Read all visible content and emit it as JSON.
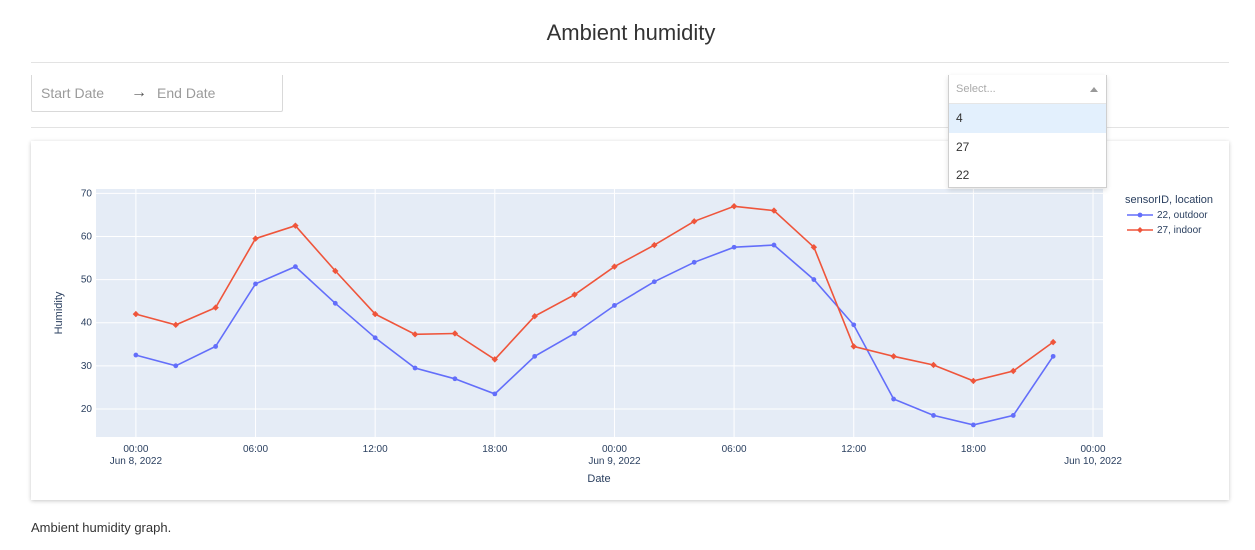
{
  "header": {
    "title": "Ambient humidity"
  },
  "date_range": {
    "start_placeholder": "Start Date",
    "arrow": "→",
    "end_placeholder": "End Date"
  },
  "sensor_select": {
    "placeholder": "Select...",
    "options": [
      "4",
      "27",
      "22"
    ]
  },
  "caption": "Ambient humidity graph.",
  "chart_data": {
    "type": "line",
    "xlabel": "Date",
    "ylabel": "Humidity",
    "ylim": [
      13.5,
      71
    ],
    "yticks": [
      20,
      30,
      40,
      50,
      60,
      70
    ],
    "x_range": [
      "2022-06-07T22:00",
      "2022-06-10T00:30"
    ],
    "x_ticks": [
      {
        "t": "2022-06-08T00:00",
        "label": "00:00",
        "sub": "Jun 8, 2022"
      },
      {
        "t": "2022-06-08T06:00",
        "label": "06:00",
        "sub": ""
      },
      {
        "t": "2022-06-08T12:00",
        "label": "12:00",
        "sub": ""
      },
      {
        "t": "2022-06-08T18:00",
        "label": "18:00",
        "sub": ""
      },
      {
        "t": "2022-06-09T00:00",
        "label": "00:00",
        "sub": "Jun 9, 2022"
      },
      {
        "t": "2022-06-09T06:00",
        "label": "06:00",
        "sub": ""
      },
      {
        "t": "2022-06-09T12:00",
        "label": "12:00",
        "sub": ""
      },
      {
        "t": "2022-06-09T18:00",
        "label": "18:00",
        "sub": ""
      },
      {
        "t": "2022-06-10T00:00",
        "label": "00:00",
        "sub": "Jun 10, 2022"
      }
    ],
    "x": [
      "2022-06-08T00:00",
      "2022-06-08T02:00",
      "2022-06-08T04:00",
      "2022-06-08T06:00",
      "2022-06-08T08:00",
      "2022-06-08T10:00",
      "2022-06-08T12:00",
      "2022-06-08T14:00",
      "2022-06-08T16:00",
      "2022-06-08T18:00",
      "2022-06-08T20:00",
      "2022-06-08T22:00",
      "2022-06-09T00:00",
      "2022-06-09T02:00",
      "2022-06-09T04:00",
      "2022-06-09T06:00",
      "2022-06-09T08:00",
      "2022-06-09T10:00",
      "2022-06-09T12:00",
      "2022-06-09T14:00",
      "2022-06-09T16:00",
      "2022-06-09T18:00",
      "2022-06-09T20:00",
      "2022-06-09T22:00"
    ],
    "legend_title": "sensorID, location",
    "legend_position": "right",
    "series": [
      {
        "name": "22, outdoor",
        "color": "#636efa",
        "marker": "circle",
        "values": [
          32.5,
          30,
          34.5,
          49,
          53,
          44.5,
          36.5,
          29.5,
          27,
          23.5,
          32.2,
          37.5,
          44,
          49.5,
          54,
          57.5,
          58,
          50,
          39.5,
          22.3,
          18.5,
          16.3,
          18.5,
          32.2
        ]
      },
      {
        "name": "27, indoor",
        "color": "#ef553b",
        "marker": "diamond",
        "values": [
          42,
          39.5,
          43.5,
          59.5,
          62.5,
          52,
          42,
          37.3,
          37.5,
          31.5,
          41.5,
          46.5,
          53,
          58,
          63.5,
          67,
          66,
          57.5,
          34.5,
          32.2,
          30.2,
          26.5,
          28.8,
          35.5
        ]
      }
    ],
    "gridlines": true,
    "plot_bgcolor": "#e5ecf6"
  }
}
